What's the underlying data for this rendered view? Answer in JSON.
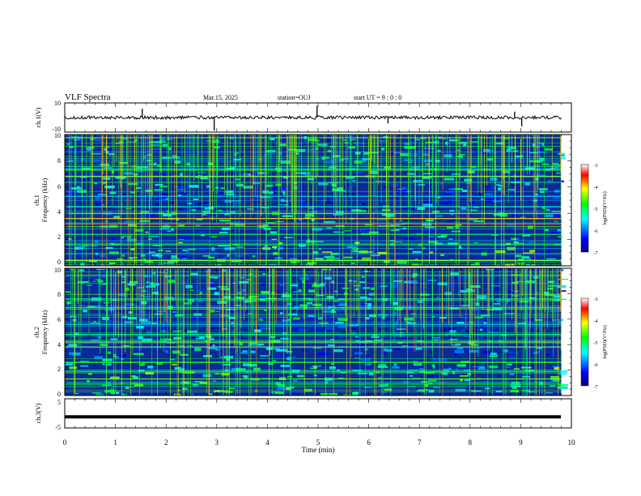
{
  "header": {
    "title": "VLF Spectra",
    "date": "Mar.15, 2025",
    "station": "station=OUJ",
    "start_ut": "start UT =  9 : 0 : 0"
  },
  "ch1_waveform": {
    "ylabel": "ch.1(V)",
    "ytick_labels": [
      "10",
      "-10"
    ]
  },
  "ch1_spectrogram": {
    "ylabel_top": "ch.1",
    "ylabel": "Frequency (kHz)",
    "ytick_labels": [
      "10",
      "8",
      "6",
      "4",
      "2",
      "0"
    ]
  },
  "ch2_spectrogram": {
    "ylabel_top": "ch.2",
    "ylabel": "Frequency (kHz)",
    "ytick_labels": [
      "10",
      "8",
      "6",
      "4",
      "2",
      "0"
    ]
  },
  "ch3_waveform": {
    "ylabel": "ch.3(V)",
    "ytick_labels": [
      "5",
      "-5"
    ]
  },
  "colorbar": {
    "label": "log(PSD)(V²/Hz)",
    "tick_labels": [
      "-3",
      "-4",
      "-5",
      "-6",
      "-7"
    ]
  },
  "xaxis": {
    "label": "Time (min)",
    "tick_labels": [
      "0",
      "1",
      "2",
      "3",
      "4",
      "5",
      "6",
      "7",
      "8",
      "9",
      "10"
    ]
  },
  "colors": {
    "background": "#ffffff",
    "spectrogram_base": "#0a2a9a",
    "colormap": [
      "#000080",
      "#0000ff",
      "#00ffff",
      "#00ff00",
      "#ffff00",
      "#ff0000",
      "#ffffff"
    ]
  },
  "chart_data": [
    {
      "type": "line",
      "name": "ch.1 waveform",
      "xlim": [
        0,
        10
      ],
      "ylim": [
        -10,
        10
      ],
      "baseline": 0,
      "spikes": [
        {
          "x": 1.53,
          "y": 6
        },
        {
          "x": 2.95,
          "y": -9
        },
        {
          "x": 4.98,
          "y": 8
        },
        {
          "x": 6.38,
          "y": -4
        },
        {
          "x": 8.88,
          "y": 4
        },
        {
          "x": 9.02,
          "y": -6
        }
      ]
    },
    {
      "type": "heatmap",
      "name": "ch.1 spectrogram",
      "x_range": [
        0,
        9.8
      ],
      "y_range": [
        0,
        10
      ],
      "z_range": [
        -7,
        -3
      ],
      "bands": [
        {
          "freq": 0.4,
          "level": -4.5
        },
        {
          "freq": 1.6,
          "level": -5.2
        },
        {
          "freq": 2.4,
          "level": -5.2
        },
        {
          "freq": 3.2,
          "level": -3.4
        },
        {
          "freq": 3.6,
          "level": -4.2
        },
        {
          "freq": 4.0,
          "level": -4.8
        },
        {
          "freq": 4.5,
          "level": -5.5
        },
        {
          "freq": 5.3,
          "level": -5.8
        },
        {
          "freq": 6.8,
          "level": -4.6
        },
        {
          "freq": 7.3,
          "level": -5.0
        }
      ]
    },
    {
      "type": "heatmap",
      "name": "ch.2 spectrogram",
      "x_range": [
        0,
        9.8
      ],
      "y_range": [
        0,
        10
      ],
      "z_range": [
        -7,
        -3
      ],
      "bands": [
        {
          "freq": 0.9,
          "level": -5.0
        },
        {
          "freq": 1.3,
          "level": -4.8
        },
        {
          "freq": 1.9,
          "level": -5.2
        },
        {
          "freq": 2.6,
          "level": -5.0
        },
        {
          "freq": 3.8,
          "level": -3.6
        },
        {
          "freq": 4.2,
          "level": -4.2
        },
        {
          "freq": 4.8,
          "level": -5.4
        },
        {
          "freq": 5.6,
          "level": -5.8
        },
        {
          "freq": 6.9,
          "level": -4.8
        }
      ]
    },
    {
      "type": "line",
      "name": "ch.3 waveform",
      "xlim": [
        0,
        10
      ],
      "ylim": [
        -5,
        5
      ],
      "level": -1.2
    }
  ]
}
